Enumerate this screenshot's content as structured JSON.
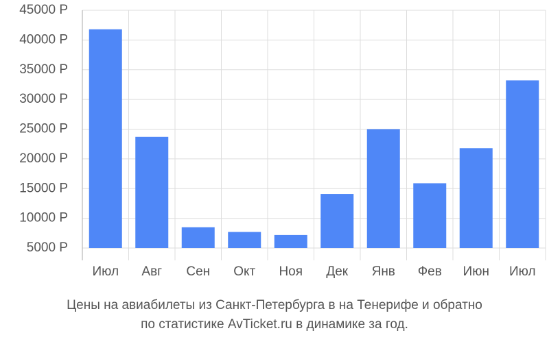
{
  "chart_data": {
    "type": "bar",
    "title": [
      "Цены на авиабилеты из Санкт-Петербурга в на Тенерифе и обратно",
      "по статистике AvTicket.ru в динамике за год."
    ],
    "categories": [
      "Июл",
      "Авг",
      "Сен",
      "Окт",
      "Ноя",
      "Дек",
      "Янв",
      "Фев",
      "Июн",
      "Июл"
    ],
    "values": [
      41800,
      23700,
      8500,
      7700,
      7200,
      14100,
      25000,
      15900,
      21800,
      33200
    ],
    "color": "#4f87f7",
    "ylim": [
      5000,
      45000
    ],
    "yticks": [
      {
        "value": 5000,
        "label": "5000 Р"
      },
      {
        "value": 10000,
        "label": "10000 Р"
      },
      {
        "value": 15000,
        "label": "15000 Р"
      },
      {
        "value": 20000,
        "label": "20000 Р"
      },
      {
        "value": 25000,
        "label": "25000 Р"
      },
      {
        "value": 30000,
        "label": "30000 Р"
      },
      {
        "value": 35000,
        "label": "35000 Р"
      },
      {
        "value": 40000,
        "label": "40000 Р"
      },
      {
        "value": 45000,
        "label": "45000 Р"
      }
    ],
    "grid": true
  }
}
